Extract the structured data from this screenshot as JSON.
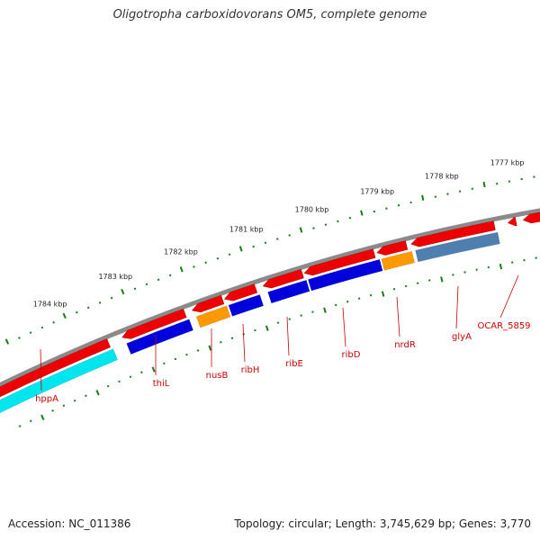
{
  "title": "Oligotropha carboxidovorans OM5, complete genome",
  "footer": {
    "accession": "Accession: NC_011386",
    "topology": "Topology: circular; Length: 3,745,629 bp; Genes: 3,770"
  },
  "colors": {
    "backbone": "#8a8a8a",
    "forward_gene": "#ee0000",
    "tick": "#1a7a1a",
    "label": "#cc0000",
    "cyan_gene": "#00e5ee",
    "blue_gene": "#0000dd",
    "orange_gene": "#ff9900",
    "steelblue_gene": "#4f7fae"
  },
  "scale": {
    "unit": "kbp",
    "tick_labels": [
      "1777 kbp",
      "1778 kbp",
      "1779 kbp",
      "1780 kbp",
      "1781 kbp",
      "1782 kbp",
      "1783 kbp",
      "1784 kbp"
    ]
  },
  "genes": [
    {
      "name": "hppA",
      "strand": "reverse",
      "color": "cyan"
    },
    {
      "name": "thiL",
      "strand": "reverse",
      "color": "blue"
    },
    {
      "name": "nusB",
      "strand": "reverse",
      "color": "orange"
    },
    {
      "name": "ribH",
      "strand": "reverse",
      "color": "blue"
    },
    {
      "name": "ribE",
      "strand": "reverse",
      "color": "blue"
    },
    {
      "name": "ribD",
      "strand": "reverse",
      "color": "blue"
    },
    {
      "name": "nrdR",
      "strand": "reverse",
      "color": "orange"
    },
    {
      "name": "glyA",
      "strand": "reverse",
      "color": "steelblue"
    },
    {
      "name": "OCAR_5859",
      "strand": "reverse",
      "color": "none"
    }
  ]
}
